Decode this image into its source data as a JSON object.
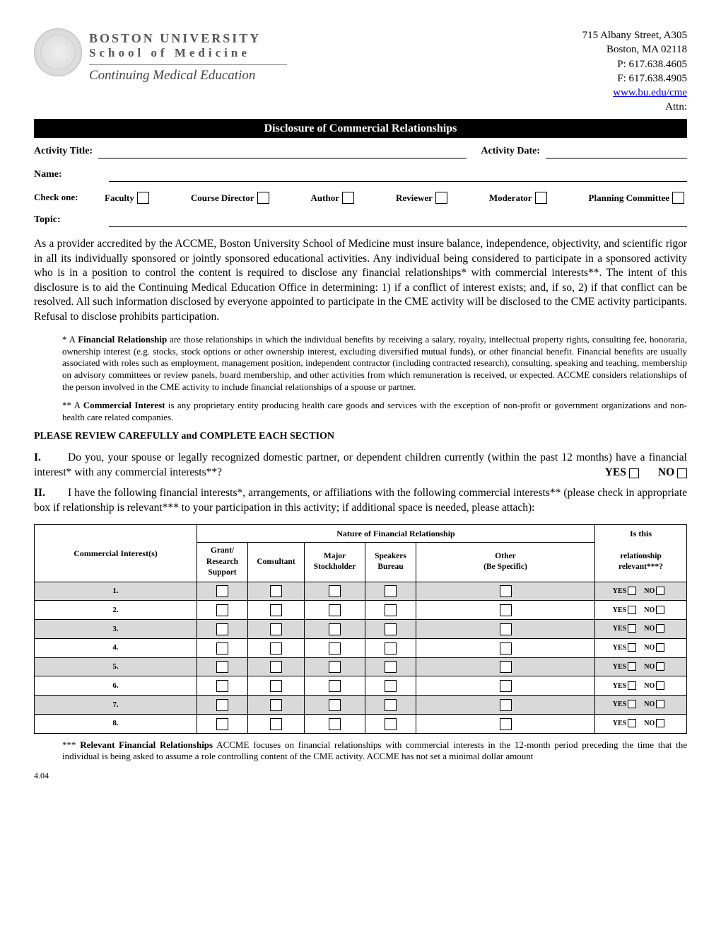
{
  "header": {
    "org_line1": "BOSTON UNIVERSITY",
    "org_line2": "School of Medicine",
    "org_line3": "Continuing Medical Education",
    "addr_line1": "715 Albany Street, A305",
    "addr_line2": "Boston, MA  02118",
    "phone": "P: 617.638.4605",
    "fax": "F: 617.638.4905",
    "url": "www.bu.edu/cme",
    "attn": "Attn:"
  },
  "titlebar": "Disclosure of Commercial Relationships",
  "labels": {
    "activity_title": "Activity Title:",
    "activity_date": "Activity Date:",
    "name": "Name:",
    "check_one": "Check one:",
    "topic": "Topic:"
  },
  "roles": [
    "Faculty",
    "Course Director",
    "Author",
    "Reviewer",
    "Moderator",
    "Planning Committee"
  ],
  "para_main": "As a provider accredited by the ACCME, Boston University School of Medicine must insure balance, independence, objectivity, and scientific rigor in all its individually sponsored or jointly sponsored educational activities.  Any individual being considered to participate in a sponsored activity who is in a position to control the content is required to disclose any financial relationships* with commercial interests**. The intent of this disclosure is to aid the Continuing Medical Education Office in determining: 1) if a conflict of interest exists; and, if so, 2) if that conflict can be resolved. All such information disclosed by everyone appointed to participate in the CME activity will be disclosed to the CME activity participants.  Refusal to disclose prohibits participation.",
  "footnote_fr_lead": "* A ",
  "footnote_fr_term": "Financial Relationship",
  "footnote_fr_body": " are those relationships in which the individual benefits by receiving a salary, royalty, intellectual property rights, consulting fee, honoraria, ownership interest (e.g. stocks, stock options or other ownership interest, excluding diversified mutual funds), or other financial benefit. Financial benefits are usually associated with roles such as employment, management position, independent contractor (including contracted research), consulting, speaking and teaching, membership on advisory committees or review panels, board membership, and other activities from which remuneration is received, or expected.  ACCME considers relationships of the person involved in the CME activity to include financial relationships of a spouse or partner.",
  "footnote_ci_lead": "** A ",
  "footnote_ci_term": "Commercial Interest",
  "footnote_ci_body": " is any proprietary entity producing health care goods and services with the exception of non-profit or government organizations and non-health care related companies.",
  "review_head": "PLEASE REVIEW CAREFULLY and COMPLETE EACH SECTION",
  "q1_num": "I.",
  "q1_body": "Do you, your spouse or legally recognized domestic partner, or dependent children currently (within the past 12 months) have a financial interest* with any commercial interests**?",
  "yes": "YES",
  "no": "NO",
  "q2_num": "II.",
  "q2_body": "I have the following financial interests*, arrangements, or affiliations with the following commercial interests** (please check in appropriate box if relationship is relevant*** to your participation in this activity; if additional space is needed, please attach):",
  "table": {
    "h_ci": "Commercial Interest(s)",
    "h_nature": "Nature of Financial Relationship",
    "h_relevant1": "Is this",
    "h_relevant2": "relationship relevant***?",
    "cols": [
      "Grant/ Research Support",
      "Consultant",
      "Major Stockholder",
      "Speakers Bureau",
      "Other (Be Specific)"
    ],
    "rows": [
      "1.",
      "2.",
      "3.",
      "4.",
      "5.",
      "6.",
      "7.",
      "8."
    ],
    "shaded": [
      true,
      false,
      true,
      false,
      true,
      false,
      true,
      false
    ]
  },
  "footnote_rel_lead": "*** ",
  "footnote_rel_term": "Relevant Financial Relationships",
  "footnote_rel_body": " ACCME focuses on financial relationships with commercial interests in the 12-month period preceding the time that the individual is being asked to assume a role controlling content of the CME activity. ACCME has not set a minimal dollar amount",
  "version": "4.04"
}
